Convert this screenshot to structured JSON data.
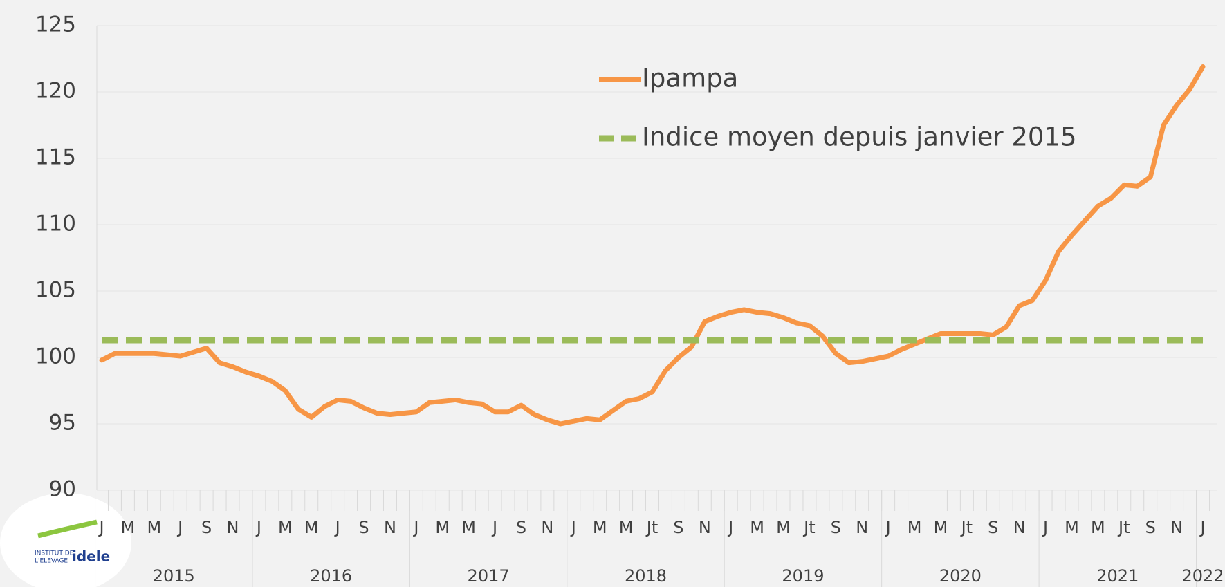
{
  "chart_data": {
    "type": "line",
    "categories": [
      "J",
      null,
      "M",
      null,
      "M",
      null,
      "J",
      null,
      "S",
      null,
      "N",
      null,
      "J",
      null,
      "M",
      null,
      "M",
      null,
      "J",
      null,
      "S",
      null,
      "N",
      null,
      "J",
      null,
      "M",
      null,
      "M",
      null,
      "J",
      null,
      "S",
      null,
      "N",
      null,
      "J",
      null,
      "M",
      null,
      "M",
      null,
      "Jt",
      null,
      "S",
      null,
      "N",
      null,
      "J",
      null,
      "M",
      null,
      "M",
      null,
      "Jt",
      null,
      "S",
      null,
      "N",
      null,
      "J",
      null,
      "M",
      null,
      "M",
      null,
      "Jt",
      null,
      "S",
      null,
      "N",
      null,
      "J",
      null,
      "M",
      null,
      "M",
      null,
      "Jt",
      null,
      "S",
      null,
      "N",
      null,
      "J"
    ],
    "years": [
      "2015",
      "2016",
      "2017",
      "2018",
      "2019",
      "2020",
      "2021",
      "2022"
    ],
    "series": [
      {
        "name": "Ipampa",
        "color": "#f79646",
        "values": [
          99.8,
          100.3,
          100.3,
          100.3,
          100.3,
          100.2,
          100.1,
          100.4,
          100.7,
          99.6,
          99.3,
          98.9,
          98.6,
          98.2,
          97.5,
          96.1,
          95.5,
          96.3,
          96.8,
          96.7,
          96.2,
          95.8,
          95.7,
          95.8,
          95.9,
          96.6,
          96.7,
          96.8,
          96.6,
          96.5,
          95.9,
          95.9,
          96.4,
          95.7,
          95.3,
          95.0,
          95.2,
          95.4,
          95.3,
          96.0,
          96.7,
          96.9,
          97.4,
          99.0,
          100.0,
          100.8,
          102.7,
          103.1,
          103.4,
          103.6,
          103.4,
          103.3,
          103.0,
          102.6,
          102.4,
          101.6,
          100.3,
          99.6,
          99.7,
          99.9,
          100.1,
          100.6,
          101.0,
          101.4,
          101.8,
          101.8,
          101.8,
          101.8,
          101.7,
          102.3,
          103.9,
          104.3,
          105.8,
          108.0,
          109.2,
          110.3,
          111.4,
          112.0,
          113.0,
          112.9,
          113.6,
          117.5,
          119.0,
          120.2,
          121.9
        ]
      },
      {
        "name": "Indice moyen depuis janvier 2015",
        "color": "#9bbb59",
        "dashed": true,
        "values": [
          101.3,
          101.3,
          101.3,
          101.3,
          101.3,
          101.3,
          101.3,
          101.3,
          101.3,
          101.3,
          101.3,
          101.3,
          101.3,
          101.3,
          101.3,
          101.3,
          101.3,
          101.3,
          101.3,
          101.3,
          101.3,
          101.3,
          101.3,
          101.3,
          101.3,
          101.3,
          101.3,
          101.3,
          101.3,
          101.3,
          101.3,
          101.3,
          101.3,
          101.3,
          101.3,
          101.3,
          101.3,
          101.3,
          101.3,
          101.3,
          101.3,
          101.3,
          101.3,
          101.3,
          101.3,
          101.3,
          101.3,
          101.3,
          101.3,
          101.3,
          101.3,
          101.3,
          101.3,
          101.3,
          101.3,
          101.3,
          101.3,
          101.3,
          101.3,
          101.3,
          101.3,
          101.3,
          101.3,
          101.3,
          101.3,
          101.3,
          101.3,
          101.3,
          101.3,
          101.3,
          101.3,
          101.3,
          101.3,
          101.3,
          101.3,
          101.3,
          101.3,
          101.3,
          101.3,
          101.3,
          101.3,
          101.3,
          101.3,
          101.3,
          101.3
        ]
      }
    ],
    "ylim": [
      90,
      125
    ],
    "yticks": [
      90,
      95,
      100,
      105,
      110,
      115,
      120,
      125
    ],
    "grid": true
  },
  "logo": {
    "line1": "INSTITUT DE",
    "line2": "L'ELEVAGE",
    "brand": "idele"
  }
}
